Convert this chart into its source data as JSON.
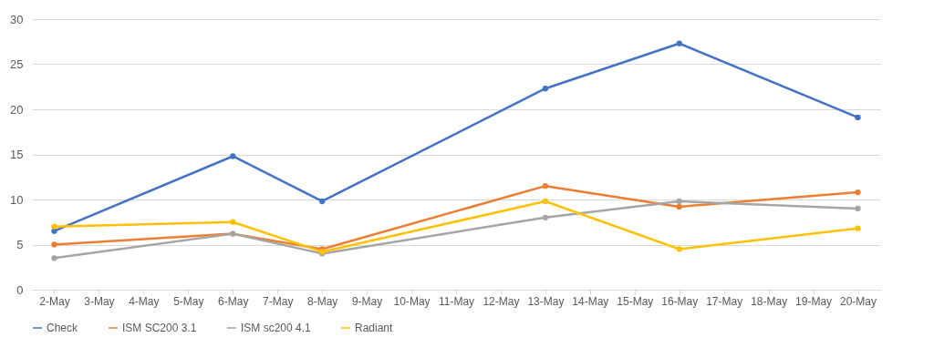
{
  "chart_data": {
    "type": "line",
    "categories": [
      "2-May",
      "3-May",
      "4-May",
      "5-May",
      "6-May",
      "7-May",
      "8-May",
      "9-May",
      "10-May",
      "11-May",
      "12-May",
      "13-May",
      "14-May",
      "15-May",
      "16-May",
      "17-May",
      "18-May",
      "19-May",
      "20-May"
    ],
    "series": [
      {
        "name": "Check",
        "color": "#4472c4",
        "x": [
          "2-May",
          "6-May",
          "8-May",
          "13-May",
          "16-May",
          "20-May"
        ],
        "values": [
          6.5,
          14.8,
          9.8,
          22.3,
          27.3,
          19.1
        ]
      },
      {
        "name": "ISM SC200 3.1",
        "color": "#ed7d31",
        "x": [
          "2-May",
          "6-May",
          "8-May",
          "13-May",
          "16-May",
          "20-May"
        ],
        "values": [
          5.0,
          6.2,
          4.5,
          11.5,
          9.2,
          10.8
        ]
      },
      {
        "name": "ISM sc200 4.1",
        "color": "#a5a5a5",
        "x": [
          "2-May",
          "6-May",
          "8-May",
          "13-May",
          "16-May",
          "20-May"
        ],
        "values": [
          3.5,
          6.2,
          4.0,
          8.0,
          9.8,
          9.0
        ]
      },
      {
        "name": "Radiant",
        "color": "#ffc000",
        "x": [
          "2-May",
          "6-May",
          "8-May",
          "13-May",
          "16-May",
          "20-May"
        ],
        "values": [
          7.0,
          7.5,
          4.2,
          9.8,
          4.5,
          6.8
        ]
      }
    ],
    "ylim": [
      0,
      30
    ],
    "yticks": [
      0,
      5,
      10,
      15,
      20,
      25,
      30
    ],
    "grid": "y",
    "legend": "bottom",
    "marker": "circle"
  }
}
